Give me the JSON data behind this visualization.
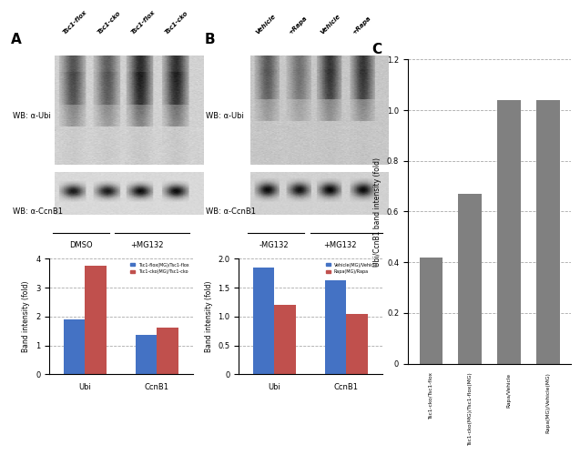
{
  "panel_A_bar": {
    "categories": [
      "Ubi",
      "CcnB1"
    ],
    "blue_values": [
      1.9,
      1.35
    ],
    "red_values": [
      3.75,
      1.62
    ],
    "ylim": [
      0,
      4
    ],
    "yticks": [
      0,
      1,
      2,
      3,
      4
    ],
    "ylabel": "Band intensity (fold)",
    "legend_blue": "Tsc1-flox(MG)/Tsc1-flox",
    "legend_red": "Tsc1-cko(MG)/Tsc1-cko",
    "dashed_lines": [
      1.0,
      2.0,
      3.0,
      4.0
    ],
    "bar_color_blue": "#4472C4",
    "bar_color_red": "#C0504D"
  },
  "panel_B_bar": {
    "categories": [
      "Ubi",
      "CcnB1"
    ],
    "blue_values": [
      1.85,
      1.62
    ],
    "red_values": [
      1.2,
      1.05
    ],
    "ylim": [
      0,
      2
    ],
    "yticks": [
      0,
      0.5,
      1.0,
      1.5,
      2.0
    ],
    "ylabel": "Band intensity (fold)",
    "legend_blue": "Vehicle(MG)/Vehicle",
    "legend_red": "Rapa(MG)/Rapa",
    "dashed_lines": [
      0.5,
      1.0,
      1.5,
      2.0
    ],
    "bar_color_blue": "#4472C4",
    "bar_color_red": "#C0504D"
  },
  "panel_C_bar": {
    "categories": [
      "Tsc1-cko/Tsc1-flox",
      "Tsc1-cko(MG)/Tsc1-flox(MG)",
      "Rapa/Vehicle",
      "Rapa(MG)/Vehicle(MG)"
    ],
    "values": [
      0.42,
      0.67,
      1.04,
      1.04
    ],
    "ylim": [
      0,
      1.2
    ],
    "yticks": [
      0,
      0.2,
      0.4,
      0.6,
      0.8,
      1.0,
      1.2
    ],
    "ylabel": "Ubi/CcnB1 band intensity (fold)",
    "bar_color": "#808080",
    "dashed_lines": [
      0.2,
      0.4,
      0.6,
      0.8,
      1.0,
      1.2
    ]
  },
  "label_A": "A",
  "label_B": "B",
  "label_C": "C",
  "wb_labels_A": [
    "WB: α-Ubi",
    "WB: α-CcnB1"
  ],
  "wb_labels_B": [
    "WB: α-Ubi",
    "WB: α-CcnB1"
  ],
  "lane_labels_A": [
    "Tsc1-flox",
    "Tsc1-cko",
    "Tsc1-flox",
    "Tsc1-cko"
  ],
  "lane_labels_B": [
    "Vehicle",
    "+Rapa",
    "Vehicle",
    "+Rapa"
  ],
  "condition_labels_A": [
    "DMSO",
    "+MG132"
  ],
  "condition_labels_B": [
    "-MG132",
    "+MG132"
  ]
}
